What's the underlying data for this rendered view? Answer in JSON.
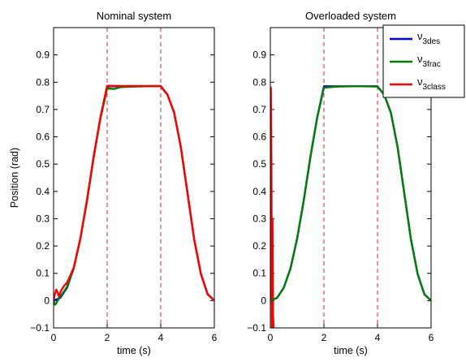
{
  "chart_data": [
    {
      "type": "line",
      "title": "Nominal system",
      "xlabel": "time (s)",
      "ylabel": "Position (rad)",
      "xlim": [
        0,
        6
      ],
      "ylim": [
        -0.1,
        1.0
      ],
      "xticks": [
        "0",
        "2",
        "4",
        "6"
      ],
      "yticks": [
        "−0.1",
        "0",
        "0.1",
        "0.2",
        "0.3",
        "0.4",
        "0.5",
        "0.6",
        "0.7",
        "0.8",
        "0.9"
      ],
      "vlines": [
        2,
        4
      ],
      "vline_color": "#d62728",
      "series": [
        {
          "color": "#0000ff",
          "x": [
            0,
            0.25,
            0.5,
            0.75,
            1.0,
            1.25,
            1.5,
            1.75,
            2.0,
            2.5,
            3.0,
            3.5,
            4.0,
            4.25,
            4.5,
            4.75,
            5.0,
            5.25,
            5.5,
            5.75,
            6.0
          ],
          "y": [
            0,
            0.01,
            0.047,
            0.117,
            0.227,
            0.369,
            0.529,
            0.671,
            0.785,
            0.785,
            0.785,
            0.785,
            0.785,
            0.754,
            0.688,
            0.562,
            0.393,
            0.223,
            0.097,
            0.023,
            0
          ]
        },
        {
          "color": "#008000",
          "x": [
            0,
            0.05,
            0.1,
            0.2,
            0.3,
            0.4,
            0.5,
            0.75,
            1.0,
            1.25,
            1.5,
            1.75,
            2.0,
            2.25,
            2.5,
            3.0,
            3.5,
            4.0,
            4.25,
            4.5,
            4.75,
            5.0,
            5.25,
            5.5,
            5.75,
            6.0
          ],
          "y": [
            0,
            -0.015,
            -0.01,
            0.008,
            0.022,
            0.035,
            0.05,
            0.118,
            0.226,
            0.366,
            0.526,
            0.667,
            0.778,
            0.775,
            0.782,
            0.784,
            0.785,
            0.785,
            0.754,
            0.688,
            0.562,
            0.393,
            0.223,
            0.097,
            0.023,
            0
          ]
        },
        {
          "color": "#ff0000",
          "x": [
            0,
            0.05,
            0.1,
            0.15,
            0.2,
            0.25,
            0.3,
            0.4,
            0.5,
            0.75,
            1.0,
            1.25,
            1.5,
            1.75,
            2.0,
            2.5,
            3.0,
            3.5,
            4.0,
            4.25,
            4.5,
            4.75,
            5.0,
            5.25,
            5.5,
            5.75,
            6.0
          ],
          "y": [
            0,
            0.025,
            0.04,
            0.03,
            0.015,
            0.03,
            0.04,
            0.055,
            0.065,
            0.12,
            0.228,
            0.37,
            0.53,
            0.672,
            0.787,
            0.786,
            0.786,
            0.786,
            0.786,
            0.755,
            0.689,
            0.563,
            0.394,
            0.224,
            0.098,
            0.024,
            0
          ]
        }
      ]
    },
    {
      "type": "line",
      "title": "Overloaded system",
      "xlabel": "time (s)",
      "ylabel": "",
      "xlim": [
        0,
        6
      ],
      "ylim": [
        -0.1,
        1.0
      ],
      "xticks": [
        "0",
        "2",
        "4",
        "6"
      ],
      "yticks": [
        "−0.1",
        "0",
        "0.1",
        "0.2",
        "0.3",
        "0.4",
        "0.5",
        "0.6",
        "0.7",
        "0.8",
        "0.9"
      ],
      "vlines": [
        2,
        4
      ],
      "vline_color": "#d62728",
      "legend": {
        "position": "top-right",
        "entries": [
          {
            "base": "ν",
            "sub": "3des",
            "color": "#0000ff"
          },
          {
            "base": "ν",
            "sub": "3frac",
            "color": "#008000"
          },
          {
            "base": "ν",
            "sub": "3class",
            "color": "#ff0000"
          }
        ]
      },
      "series": [
        {
          "color": "#ff0000",
          "x": [
            0,
            0.02,
            0.04,
            0.06,
            0.08,
            0.1,
            0.12
          ],
          "y": [
            0,
            0.78,
            0.5,
            -0.1,
            0.3,
            -0.05,
            -0.1
          ]
        },
        {
          "color": "#0000ff",
          "x": [
            0,
            0.25,
            0.5,
            0.75,
            1.0,
            1.25,
            1.5,
            1.75,
            2.0,
            2.5,
            3.0,
            3.5,
            4.0,
            4.25,
            4.5,
            4.75,
            5.0,
            5.25,
            5.5,
            5.75,
            6.0
          ],
          "y": [
            0,
            0.01,
            0.047,
            0.117,
            0.227,
            0.369,
            0.529,
            0.671,
            0.785,
            0.785,
            0.785,
            0.785,
            0.785,
            0.754,
            0.688,
            0.562,
            0.393,
            0.223,
            0.097,
            0.023,
            0
          ]
        },
        {
          "color": "#008000",
          "x": [
            0,
            0.25,
            0.5,
            0.75,
            1.0,
            1.25,
            1.5,
            1.75,
            2.0,
            2.25,
            2.5,
            3.0,
            3.5,
            4.0,
            4.25,
            4.5,
            4.75,
            5.0,
            5.25,
            5.5,
            5.75,
            6.0
          ],
          "y": [
            0,
            0.01,
            0.047,
            0.117,
            0.227,
            0.369,
            0.529,
            0.671,
            0.78,
            0.782,
            0.784,
            0.785,
            0.785,
            0.784,
            0.754,
            0.688,
            0.562,
            0.393,
            0.223,
            0.097,
            0.023,
            0
          ]
        }
      ]
    }
  ]
}
